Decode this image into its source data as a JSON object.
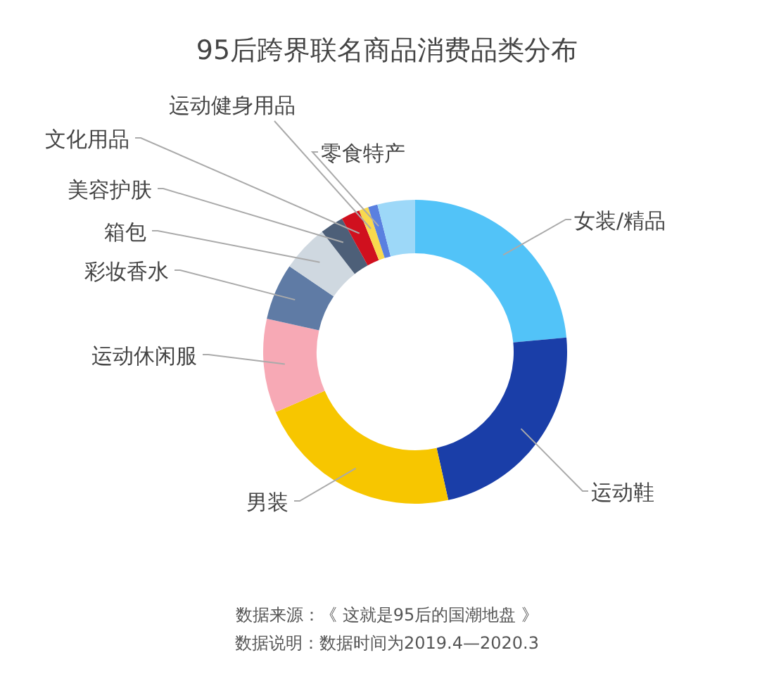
{
  "chart_data": {
    "type": "donut",
    "title": "95后跨界联名商品消费品类分布",
    "categories": [
      "女装/精品",
      "运动鞋",
      "男装",
      "运动休闲服",
      "彩妆香水",
      "箱包",
      "美容护肤",
      "文化用品",
      "运动健身用品",
      "零食特产",
      null
    ],
    "values": [
      23.5,
      23,
      22,
      10,
      6,
      5,
      2.5,
      2,
      1,
      1,
      4
    ],
    "colors": [
      "#52c3f8",
      "#1a3ea8",
      "#f7c600",
      "#f7a9b5",
      "#5f7ba5",
      "#cfd8e0",
      "#4d5f78",
      "#d0101e",
      "#f9d94e",
      "#5a80e0",
      "#9dd8f8"
    ],
    "annotations": [
      "数据来源：《 这就是95后的国潮地盘 》",
      "数据说明：数据时间为2019.4—2020.3"
    ]
  }
}
